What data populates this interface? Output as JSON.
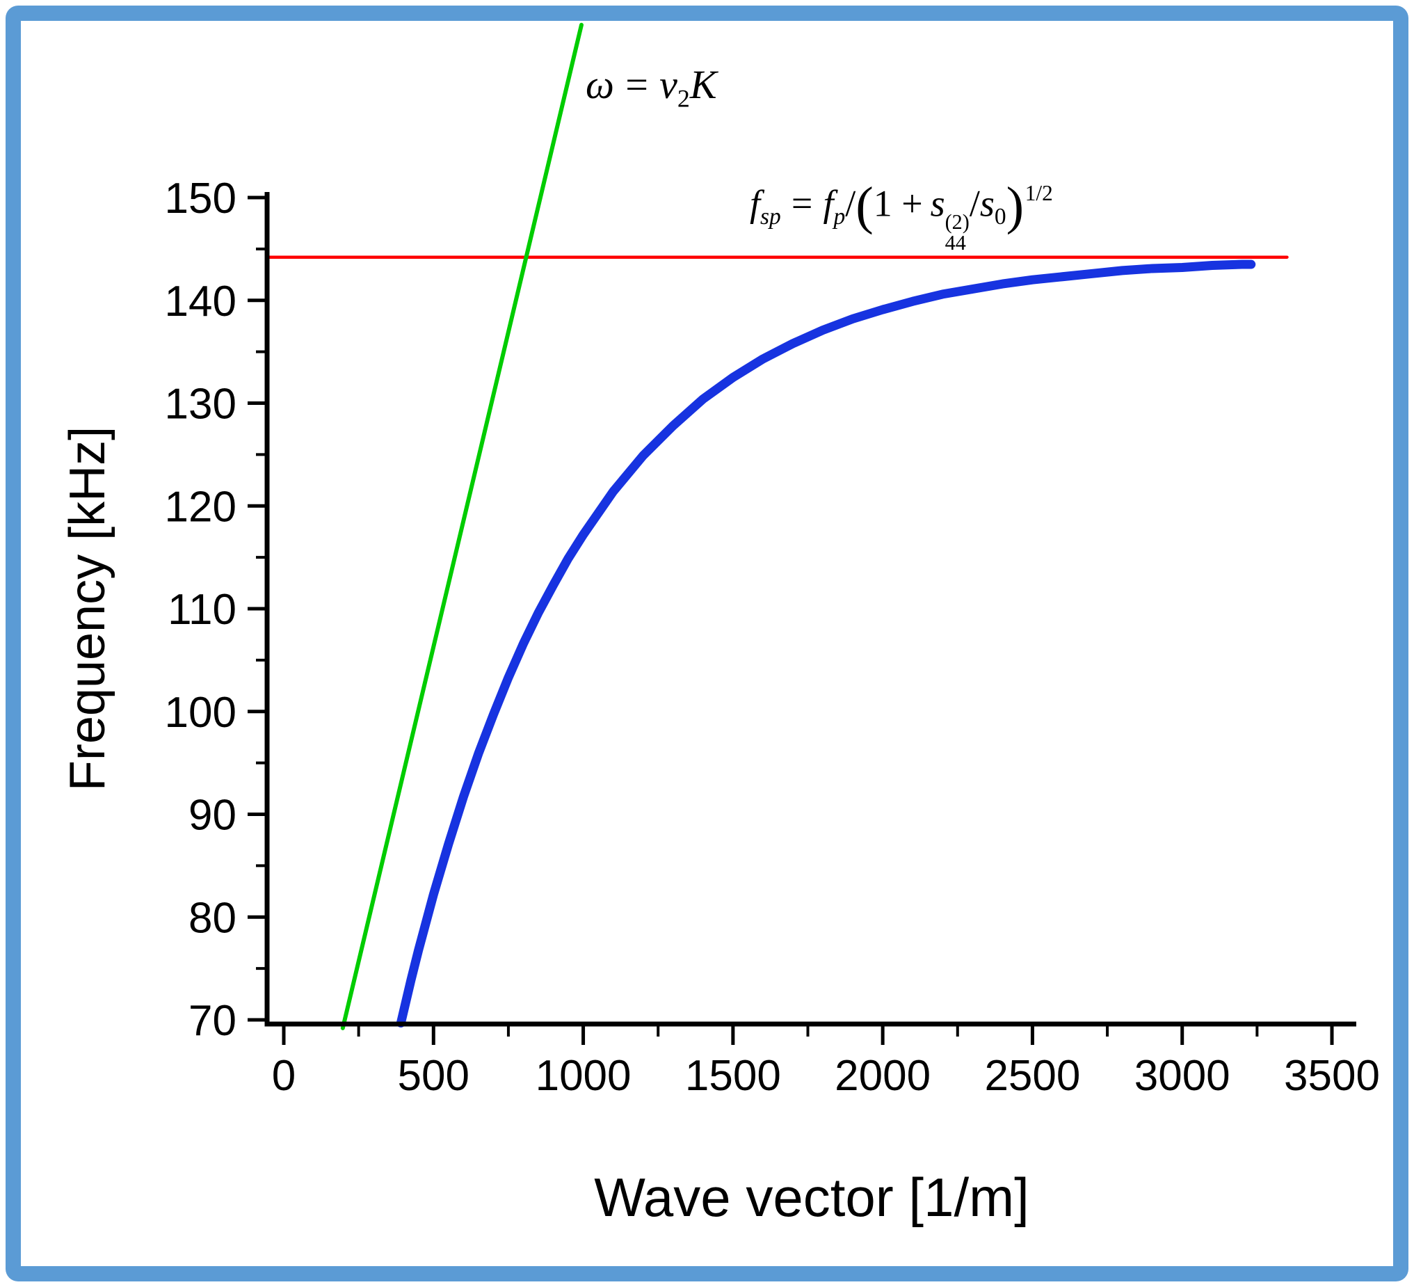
{
  "frame": {
    "border_color": "#5b9bd5",
    "background": "#ffffff"
  },
  "chart_data": {
    "type": "line",
    "title": "",
    "xlabel": "Wave vector [1/m]",
    "ylabel": "Frequency [kHz]",
    "xlim": [
      0,
      3500
    ],
    "ylim": [
      70,
      150
    ],
    "x_ticks": [
      0,
      500,
      1000,
      1500,
      2000,
      2500,
      3000,
      3500
    ],
    "y_ticks": [
      70,
      80,
      90,
      100,
      110,
      120,
      130,
      140,
      150
    ],
    "x_minor_tick_step": 250,
    "y_minor_tick_step": 5,
    "grid": false,
    "legend": "none",
    "axis_color": "#000000",
    "series": [
      {
        "name": "plasmon-dispersion-curve",
        "kind": "curve",
        "color": "#1733e0",
        "stroke_width": 13,
        "x": [
          391,
          425,
          450,
          475,
          500,
          550,
          600,
          650,
          700,
          750,
          800,
          850,
          900,
          950,
          1000,
          1100,
          1200,
          1300,
          1400,
          1500,
          1600,
          1700,
          1800,
          1900,
          2000,
          2100,
          2200,
          2300,
          2400,
          2500,
          2600,
          2700,
          2800,
          2900,
          3000,
          3100,
          3200,
          3230
        ],
        "y": [
          69.7,
          73.9,
          76.8,
          79.5,
          82.2,
          87.1,
          91.7,
          95.9,
          99.7,
          103.3,
          106.6,
          109.6,
          112.3,
          114.9,
          117.2,
          121.4,
          124.9,
          127.8,
          130.4,
          132.5,
          134.3,
          135.8,
          137.1,
          138.2,
          139.1,
          139.9,
          140.6,
          141.1,
          141.6,
          142.0,
          142.3,
          142.6,
          142.9,
          143.1,
          143.2,
          143.4,
          143.5,
          143.5
        ]
      },
      {
        "name": "sound-velocity-line",
        "kind": "line",
        "color": "#00cc00",
        "stroke_width": 6,
        "x": [
          197,
          994
        ],
        "y": [
          69.2,
          166.8
        ],
        "annotation": "ω = v2K"
      },
      {
        "name": "screened-plasma-frequency-line",
        "kind": "line",
        "color": "#fe0000",
        "stroke_width": 4.5,
        "x": [
          -56,
          3350
        ],
        "y": [
          144.2,
          144.2
        ],
        "annotation": "fsp = fp/(1 + s44(2)/s0)^(1/2)"
      }
    ]
  },
  "annotations": {
    "green_label": {
      "omega": "ω",
      "equals": "=",
      "v": "v",
      "v_sub": "2",
      "k": "K"
    },
    "red_label": {
      "f": "f",
      "f_sub": "sp",
      "equals": "=",
      "fp": "f",
      "fp_sub": "p",
      "slash": "/",
      "paren_open": "(",
      "one_plus": "1 +",
      "s": "s",
      "s_sup": "(2)",
      "s_sub": "44",
      "slash2": "/",
      "s0": "s",
      "s0_sub": "0",
      "paren_close": ")",
      "exponent": "1/2"
    }
  }
}
